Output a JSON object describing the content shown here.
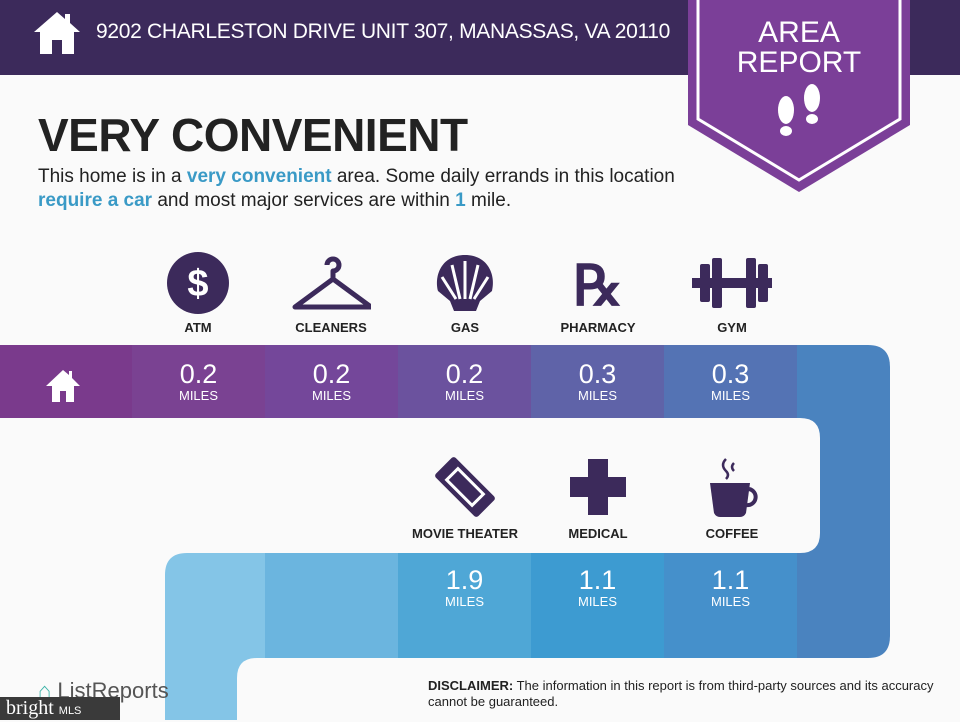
{
  "header": {
    "address": "9202 CHARLESTON DRIVE UNIT 307, MANASSAS, VA 20110",
    "home_icon": "house-icon"
  },
  "badge": {
    "line1": "AREA",
    "line2": "REPORT",
    "icon": "footprints-icon"
  },
  "title": "VERY CONVENIENT",
  "description": {
    "p1": "This home is in a ",
    "h1": "very convenient",
    "p2": " area. Some daily errands in this location ",
    "h2": "require a car",
    "p3": " and most major services are within ",
    "h3": "1",
    "p4": " mile."
  },
  "unit": "MILES",
  "row1": [
    {
      "label": "ATM",
      "value": "0.2",
      "icon": "dollar-icon"
    },
    {
      "label": "CLEANERS",
      "value": "0.2",
      "icon": "hanger-icon"
    },
    {
      "label": "GAS",
      "value": "0.2",
      "icon": "shell-icon"
    },
    {
      "label": "PHARMACY",
      "value": "0.3",
      "icon": "rx-icon"
    },
    {
      "label": "GYM",
      "value": "0.3",
      "icon": "dumbbell-icon"
    }
  ],
  "row2": [
    {
      "label": "MOVIE THEATER",
      "value": "1.9",
      "icon": "ticket-icon"
    },
    {
      "label": "MEDICAL",
      "value": "1.1",
      "icon": "cross-icon"
    },
    {
      "label": "COFFEE",
      "value": "1.1",
      "icon": "coffee-icon"
    }
  ],
  "colors": {
    "header": "#3c2a5b",
    "badge": "#7b3f98",
    "icon": "#3c2a5b",
    "highlight": "#3a9ac6"
  },
  "footer": {
    "disclaimer_label": "DISCLAIMER:",
    "disclaimer": " The information in this report is from third-party sources and its accuracy cannot be guaranteed.",
    "brand": "ListReports",
    "mls_brand": "bright",
    "mls_suffix": "MLS"
  }
}
